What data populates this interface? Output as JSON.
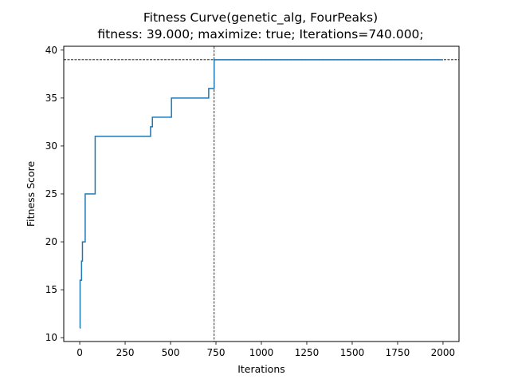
{
  "chart_data": {
    "type": "line",
    "title": "Fitness Curve(genetic_alg, FourPeaks)",
    "subtitle": "fitness: 39.000; maximize: true; Iterations=740.000;",
    "xlabel": "Iterations",
    "ylabel": "Fitness Score",
    "xlim": [
      -88,
      2088
    ],
    "ylim": [
      9.6,
      40.4
    ],
    "xticks": [
      0,
      250,
      500,
      750,
      1000,
      1250,
      1500,
      1750,
      2000
    ],
    "yticks": [
      10,
      15,
      20,
      25,
      30,
      35,
      40
    ],
    "grid": false,
    "line_color": "#1f77b4",
    "marker_color": "#000000",
    "series": [
      {
        "drawstyle": "steps-post",
        "x": [
          0,
          2,
          10,
          15,
          20,
          30,
          85,
          390,
          400,
          505,
          710,
          740,
          2000
        ],
        "y": [
          11,
          16,
          18,
          20,
          20,
          25,
          31,
          32,
          33,
          35,
          36,
          39,
          39
        ]
      }
    ],
    "reference_lines": {
      "x": 740,
      "y": 39
    }
  }
}
